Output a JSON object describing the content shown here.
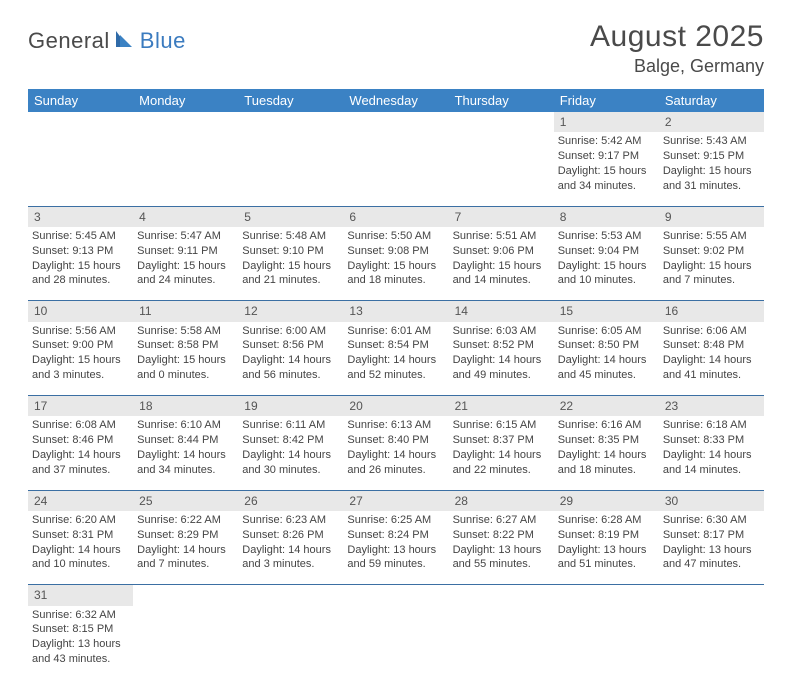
{
  "logo": {
    "text1": "General",
    "text2": "Blue"
  },
  "title": "August 2025",
  "location": "Balge, Germany",
  "header_bg": "#3b82c4",
  "divider_color": "#3b6fa3",
  "daynum_bg": "#e8e8e8",
  "day_headers": [
    "Sunday",
    "Monday",
    "Tuesday",
    "Wednesday",
    "Thursday",
    "Friday",
    "Saturday"
  ],
  "weeks": [
    {
      "nums": [
        "",
        "",
        "",
        "",
        "",
        "1",
        "2"
      ],
      "cells": [
        null,
        null,
        null,
        null,
        null,
        {
          "sunrise": "Sunrise: 5:42 AM",
          "sunset": "Sunset: 9:17 PM",
          "day1": "Daylight: 15 hours",
          "day2": "and 34 minutes."
        },
        {
          "sunrise": "Sunrise: 5:43 AM",
          "sunset": "Sunset: 9:15 PM",
          "day1": "Daylight: 15 hours",
          "day2": "and 31 minutes."
        }
      ]
    },
    {
      "nums": [
        "3",
        "4",
        "5",
        "6",
        "7",
        "8",
        "9"
      ],
      "cells": [
        {
          "sunrise": "Sunrise: 5:45 AM",
          "sunset": "Sunset: 9:13 PM",
          "day1": "Daylight: 15 hours",
          "day2": "and 28 minutes."
        },
        {
          "sunrise": "Sunrise: 5:47 AM",
          "sunset": "Sunset: 9:11 PM",
          "day1": "Daylight: 15 hours",
          "day2": "and 24 minutes."
        },
        {
          "sunrise": "Sunrise: 5:48 AM",
          "sunset": "Sunset: 9:10 PM",
          "day1": "Daylight: 15 hours",
          "day2": "and 21 minutes."
        },
        {
          "sunrise": "Sunrise: 5:50 AM",
          "sunset": "Sunset: 9:08 PM",
          "day1": "Daylight: 15 hours",
          "day2": "and 18 minutes."
        },
        {
          "sunrise": "Sunrise: 5:51 AM",
          "sunset": "Sunset: 9:06 PM",
          "day1": "Daylight: 15 hours",
          "day2": "and 14 minutes."
        },
        {
          "sunrise": "Sunrise: 5:53 AM",
          "sunset": "Sunset: 9:04 PM",
          "day1": "Daylight: 15 hours",
          "day2": "and 10 minutes."
        },
        {
          "sunrise": "Sunrise: 5:55 AM",
          "sunset": "Sunset: 9:02 PM",
          "day1": "Daylight: 15 hours",
          "day2": "and 7 minutes."
        }
      ]
    },
    {
      "nums": [
        "10",
        "11",
        "12",
        "13",
        "14",
        "15",
        "16"
      ],
      "cells": [
        {
          "sunrise": "Sunrise: 5:56 AM",
          "sunset": "Sunset: 9:00 PM",
          "day1": "Daylight: 15 hours",
          "day2": "and 3 minutes."
        },
        {
          "sunrise": "Sunrise: 5:58 AM",
          "sunset": "Sunset: 8:58 PM",
          "day1": "Daylight: 15 hours",
          "day2": "and 0 minutes."
        },
        {
          "sunrise": "Sunrise: 6:00 AM",
          "sunset": "Sunset: 8:56 PM",
          "day1": "Daylight: 14 hours",
          "day2": "and 56 minutes."
        },
        {
          "sunrise": "Sunrise: 6:01 AM",
          "sunset": "Sunset: 8:54 PM",
          "day1": "Daylight: 14 hours",
          "day2": "and 52 minutes."
        },
        {
          "sunrise": "Sunrise: 6:03 AM",
          "sunset": "Sunset: 8:52 PM",
          "day1": "Daylight: 14 hours",
          "day2": "and 49 minutes."
        },
        {
          "sunrise": "Sunrise: 6:05 AM",
          "sunset": "Sunset: 8:50 PM",
          "day1": "Daylight: 14 hours",
          "day2": "and 45 minutes."
        },
        {
          "sunrise": "Sunrise: 6:06 AM",
          "sunset": "Sunset: 8:48 PM",
          "day1": "Daylight: 14 hours",
          "day2": "and 41 minutes."
        }
      ]
    },
    {
      "nums": [
        "17",
        "18",
        "19",
        "20",
        "21",
        "22",
        "23"
      ],
      "cells": [
        {
          "sunrise": "Sunrise: 6:08 AM",
          "sunset": "Sunset: 8:46 PM",
          "day1": "Daylight: 14 hours",
          "day2": "and 37 minutes."
        },
        {
          "sunrise": "Sunrise: 6:10 AM",
          "sunset": "Sunset: 8:44 PM",
          "day1": "Daylight: 14 hours",
          "day2": "and 34 minutes."
        },
        {
          "sunrise": "Sunrise: 6:11 AM",
          "sunset": "Sunset: 8:42 PM",
          "day1": "Daylight: 14 hours",
          "day2": "and 30 minutes."
        },
        {
          "sunrise": "Sunrise: 6:13 AM",
          "sunset": "Sunset: 8:40 PM",
          "day1": "Daylight: 14 hours",
          "day2": "and 26 minutes."
        },
        {
          "sunrise": "Sunrise: 6:15 AM",
          "sunset": "Sunset: 8:37 PM",
          "day1": "Daylight: 14 hours",
          "day2": "and 22 minutes."
        },
        {
          "sunrise": "Sunrise: 6:16 AM",
          "sunset": "Sunset: 8:35 PM",
          "day1": "Daylight: 14 hours",
          "day2": "and 18 minutes."
        },
        {
          "sunrise": "Sunrise: 6:18 AM",
          "sunset": "Sunset: 8:33 PM",
          "day1": "Daylight: 14 hours",
          "day2": "and 14 minutes."
        }
      ]
    },
    {
      "nums": [
        "24",
        "25",
        "26",
        "27",
        "28",
        "29",
        "30"
      ],
      "cells": [
        {
          "sunrise": "Sunrise: 6:20 AM",
          "sunset": "Sunset: 8:31 PM",
          "day1": "Daylight: 14 hours",
          "day2": "and 10 minutes."
        },
        {
          "sunrise": "Sunrise: 6:22 AM",
          "sunset": "Sunset: 8:29 PM",
          "day1": "Daylight: 14 hours",
          "day2": "and 7 minutes."
        },
        {
          "sunrise": "Sunrise: 6:23 AM",
          "sunset": "Sunset: 8:26 PM",
          "day1": "Daylight: 14 hours",
          "day2": "and 3 minutes."
        },
        {
          "sunrise": "Sunrise: 6:25 AM",
          "sunset": "Sunset: 8:24 PM",
          "day1": "Daylight: 13 hours",
          "day2": "and 59 minutes."
        },
        {
          "sunrise": "Sunrise: 6:27 AM",
          "sunset": "Sunset: 8:22 PM",
          "day1": "Daylight: 13 hours",
          "day2": "and 55 minutes."
        },
        {
          "sunrise": "Sunrise: 6:28 AM",
          "sunset": "Sunset: 8:19 PM",
          "day1": "Daylight: 13 hours",
          "day2": "and 51 minutes."
        },
        {
          "sunrise": "Sunrise: 6:30 AM",
          "sunset": "Sunset: 8:17 PM",
          "day1": "Daylight: 13 hours",
          "day2": "and 47 minutes."
        }
      ]
    },
    {
      "nums": [
        "31",
        "",
        "",
        "",
        "",
        "",
        ""
      ],
      "cells": [
        {
          "sunrise": "Sunrise: 6:32 AM",
          "sunset": "Sunset: 8:15 PM",
          "day1": "Daylight: 13 hours",
          "day2": "and 43 minutes."
        },
        null,
        null,
        null,
        null,
        null,
        null
      ],
      "last": true
    }
  ]
}
